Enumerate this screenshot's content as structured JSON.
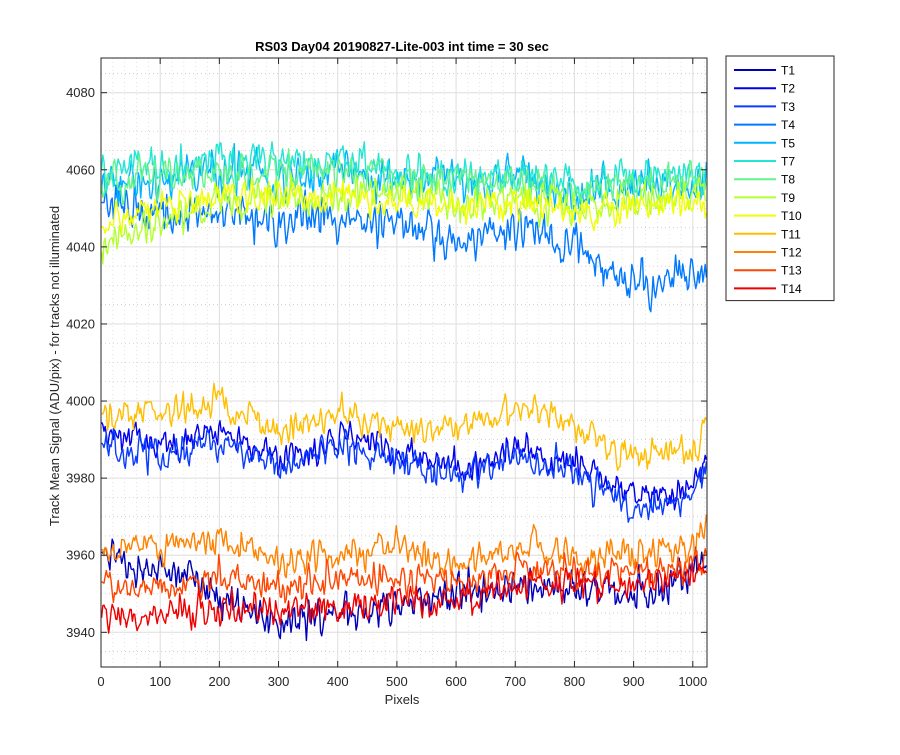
{
  "chart_data": {
    "type": "line",
    "title": "RS03 Day04 20190827-Lite-003 int time = 30 sec",
    "xlabel": "Pixels",
    "ylabel": "Track Mean Signal (ADU/pix) - for tracks not illuminated",
    "xlim": [
      0,
      1024
    ],
    "ylim": [
      3931,
      4089
    ],
    "xticks": [
      0,
      100,
      200,
      300,
      400,
      500,
      600,
      700,
      800,
      900,
      1000
    ],
    "yticks": [
      3940,
      3960,
      3980,
      4000,
      4020,
      4040,
      4060,
      4080
    ],
    "grid": true,
    "minor_grid": true,
    "legend_position": "outside-top-right",
    "x_sample_points": [
      0,
      100,
      200,
      300,
      400,
      500,
      600,
      700,
      800,
      900,
      1000,
      1024
    ],
    "series": [
      {
        "name": "T1",
        "color": "#0000b8",
        "values": [
          3960,
          3956,
          3950,
          3942,
          3944,
          3948,
          3950,
          3951,
          3952,
          3950,
          3954,
          3960
        ],
        "noise": 6
      },
      {
        "name": "T2",
        "color": "#0000ee",
        "values": [
          3992,
          3989,
          3992,
          3984,
          3990,
          3987,
          3982,
          3988,
          3983,
          3975,
          3978,
          3986
        ],
        "noise": 5
      },
      {
        "name": "T3",
        "color": "#0a3cff",
        "values": [
          3988,
          3986,
          3990,
          3982,
          3988,
          3984,
          3980,
          3986,
          3981,
          3972,
          3976,
          3984
        ],
        "noise": 5
      },
      {
        "name": "T4",
        "color": "#0078ff",
        "values": [
          4052,
          4048,
          4050,
          4046,
          4048,
          4046,
          4042,
          4046,
          4040,
          4030,
          4033,
          4034
        ],
        "noise": 7
      },
      {
        "name": "T5",
        "color": "#00b4ff",
        "values": [
          4056,
          4058,
          4060,
          4058,
          4060,
          4058,
          4056,
          4058,
          4054,
          4055,
          4057,
          4058
        ],
        "noise": 7
      },
      {
        "name": "T7",
        "color": "#22e6d2",
        "values": [
          4060,
          4060,
          4062,
          4062,
          4063,
          4060,
          4058,
          4058,
          4056,
          4058,
          4060,
          4058
        ],
        "noise": 6
      },
      {
        "name": "T8",
        "color": "#66f28c",
        "values": [
          4058,
          4058,
          4060,
          4059,
          4060,
          4058,
          4057,
          4056,
          4055,
          4056,
          4058,
          4057
        ],
        "noise": 6
      },
      {
        "name": "T9",
        "color": "#b4ff32",
        "values": [
          4042,
          4046,
          4052,
          4052,
          4054,
          4054,
          4052,
          4052,
          4050,
          4052,
          4054,
          4054
        ],
        "noise": 6
      },
      {
        "name": "T10",
        "color": "#f0ff00",
        "values": [
          4046,
          4050,
          4054,
          4052,
          4053,
          4052,
          4050,
          4052,
          4050,
          4050,
          4052,
          4052
        ],
        "noise": 5
      },
      {
        "name": "T11",
        "color": "#ffbe00",
        "values": [
          3996,
          3997,
          4000,
          3992,
          3997,
          3994,
          3992,
          3998,
          3994,
          3985,
          3987,
          3995
        ],
        "noise": 5
      },
      {
        "name": "T12",
        "color": "#ff8200",
        "values": [
          3962,
          3962,
          3964,
          3958,
          3960,
          3962,
          3958,
          3962,
          3960,
          3960,
          3962,
          3966
        ],
        "noise": 5
      },
      {
        "name": "T13",
        "color": "#ff4600",
        "values": [
          3952,
          3952,
          3954,
          3952,
          3954,
          3954,
          3952,
          3956,
          3956,
          3956,
          3958,
          3960
        ],
        "noise": 5
      },
      {
        "name": "T14",
        "color": "#ee0000",
        "values": [
          3944,
          3944,
          3946,
          3946,
          3946,
          3948,
          3948,
          3952,
          3953,
          3952,
          3955,
          3957
        ],
        "noise": 5
      }
    ]
  }
}
